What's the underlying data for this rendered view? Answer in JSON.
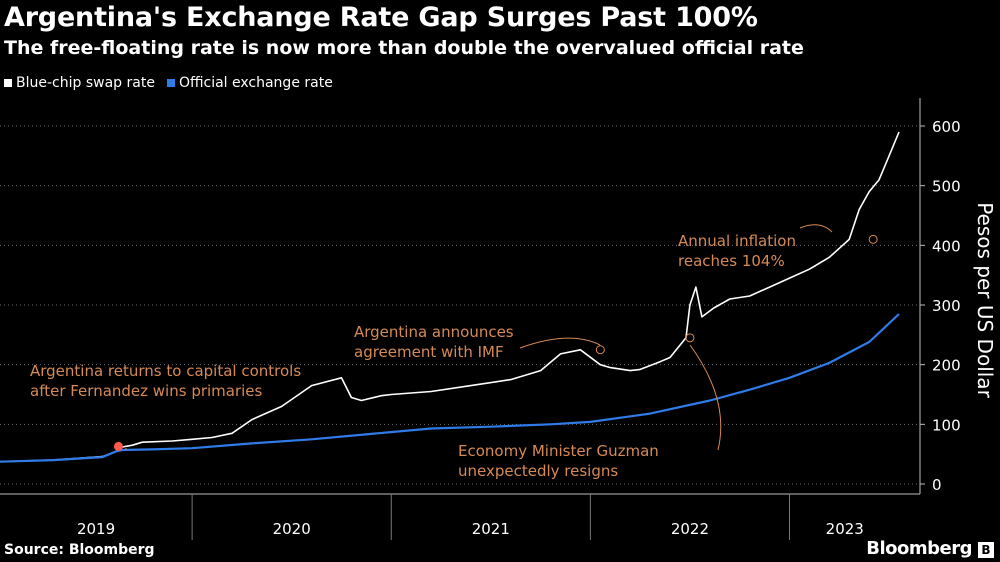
{
  "header": {
    "title": "Argentina's Exchange Rate Gap Surges Past 100%",
    "subtitle": "The free-floating rate is now more than double the overvalued official rate"
  },
  "legend": {
    "items": [
      {
        "label": "Blue-chip swap rate",
        "color": "#ffffff"
      },
      {
        "label": "Official exchange rate",
        "color": "#2f7ce8"
      }
    ]
  },
  "footer": {
    "source": "Source: Bloomberg",
    "brand": "Bloomberg",
    "brand_logo_char": "B"
  },
  "chart_data": {
    "type": "line",
    "ylabel": "Pesos per US Dollar",
    "ylim": [
      -15,
      650
    ],
    "xlim": [
      2019.0,
      2023.58
    ],
    "yticks": [
      0,
      100,
      200,
      300,
      400,
      500,
      600
    ],
    "x_tick_labels": [
      "2019",
      "2020",
      "2021",
      "2022",
      "2023"
    ],
    "y_axis_side": "right",
    "grid": "horizontal dotted",
    "series": [
      {
        "name": "Blue-chip swap rate",
        "color": "#ffffff",
        "x": [
          2019.0,
          2019.3,
          2019.55,
          2019.62,
          2019.65,
          2019.7,
          2019.75,
          2019.9,
          2020.0,
          2020.1,
          2020.2,
          2020.3,
          2020.45,
          2020.6,
          2020.75,
          2020.8,
          2020.85,
          2020.95,
          2021.0,
          2021.2,
          2021.4,
          2021.6,
          2021.75,
          2021.85,
          2021.95,
          2022.05,
          2022.1,
          2022.2,
          2022.25,
          2022.35,
          2022.4,
          2022.48,
          2022.5,
          2022.53,
          2022.56,
          2022.62,
          2022.7,
          2022.8,
          2022.9,
          2023.0,
          2023.1,
          2023.2,
          2023.25,
          2023.3,
          2023.35,
          2023.4,
          2023.45,
          2023.5,
          2023.55
        ],
        "values": [
          37,
          40,
          46,
          55,
          62,
          65,
          70,
          72,
          75,
          78,
          85,
          108,
          130,
          165,
          178,
          145,
          140,
          148,
          150,
          155,
          165,
          175,
          190,
          218,
          225,
          200,
          195,
          190,
          192,
          205,
          212,
          245,
          300,
          330,
          280,
          295,
          310,
          315,
          330,
          345,
          360,
          380,
          395,
          410,
          460,
          490,
          510,
          550,
          590
        ]
      },
      {
        "name": "Official exchange rate",
        "color": "#2f7ce8",
        "x": [
          2019.0,
          2019.3,
          2019.55,
          2019.62,
          2019.65,
          2019.8,
          2020.0,
          2020.3,
          2020.6,
          2020.9,
          2021.2,
          2021.5,
          2021.8,
          2022.0,
          2022.3,
          2022.6,
          2022.8,
          2023.0,
          2023.2,
          2023.4,
          2023.55
        ],
        "values": [
          37,
          40,
          45,
          55,
          57,
          58,
          60,
          68,
          75,
          84,
          93,
          96,
          100,
          104,
          118,
          140,
          158,
          178,
          203,
          238,
          285
        ]
      }
    ],
    "annotations": [
      {
        "text": [
          "Argentina returns to capital controls",
          "after Fernandez wins primaries"
        ],
        "x": 2019.63,
        "y": 63
      },
      {
        "text": [
          "Argentina announces",
          "agreement with IMF"
        ],
        "x": 2022.05,
        "y": 225
      },
      {
        "text": [
          "Economy Minister Guzman",
          "unexpectedly resigns"
        ],
        "x": 2022.5,
        "y": 245
      },
      {
        "text": [
          "Annual inflation",
          "reaches 104%"
        ],
        "x": 2023.42,
        "y": 410
      }
    ]
  }
}
